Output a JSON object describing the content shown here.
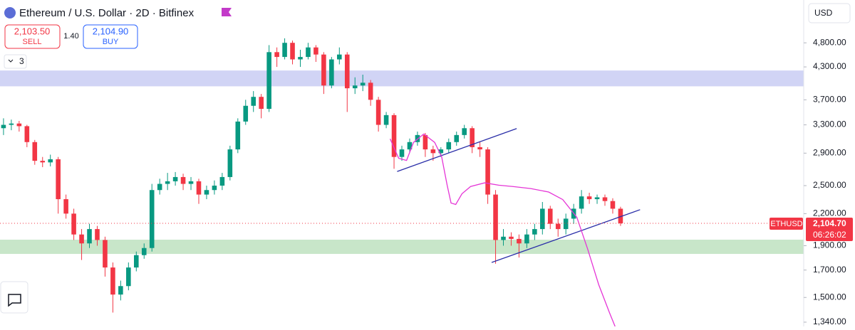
{
  "toolbar": {
    "symbol": "Ethereum / U.S. Dollar · 2D · Bitfinex",
    "sell_price": "2,103.50",
    "sell": "SELL",
    "spread": "1.40",
    "buy_price": "2,104.90",
    "buy": "BUY",
    "indicators": "3",
    "currency": "USD"
  },
  "chart_data": {
    "type": "candlestick",
    "log": true,
    "ylim": [
      1314,
      5837
    ],
    "xlim": [
      -0.45,
      102.45
    ],
    "yticks": [
      {
        "value": 4800,
        "label": "4,800.00"
      },
      {
        "value": 4300,
        "label": "4,300.00"
      },
      {
        "value": 3700,
        "label": "3,700.00"
      },
      {
        "value": 3300,
        "label": "3,300.00"
      },
      {
        "value": 2900,
        "label": "2,900.00"
      },
      {
        "value": 2500,
        "label": "2,500.00"
      },
      {
        "value": 2200,
        "label": "2,200.00"
      },
      {
        "value": 1900,
        "label": "1,900.00"
      },
      {
        "value": 1700,
        "label": "1,700.00"
      },
      {
        "value": 1500,
        "label": "1,500.00"
      },
      {
        "value": 1340,
        "label": "1,340.00"
      }
    ],
    "up_color": "#089981",
    "down_color": "#f23645",
    "open": [
      3250,
      3300,
      3320,
      3280,
      3050,
      2800,
      2780,
      2820,
      2350,
      2200,
      2000,
      1920,
      2050,
      1950,
      1720,
      1520,
      1580,
      1720,
      1820,
      1880,
      2450,
      2520,
      2550,
      2600,
      2520,
      2550,
      2400,
      2450,
      2500,
      2600,
      2950,
      3350,
      3600,
      3750,
      3550,
      4600,
      4500,
      4800,
      4450,
      4500,
      4700,
      4550,
      3950,
      4450,
      4550,
      3900,
      3950,
      4000,
      3700,
      3300,
      3450,
      2850,
      2950,
      3050,
      3150,
      2950,
      2900,
      2950,
      3050,
      3150,
      3250,
      2980,
      2950,
      2400,
      1950,
      1980,
      1960,
      1920,
      2000,
      2050,
      2250,
      2100,
      2050,
      2150,
      2250,
      2380,
      2350,
      2370,
      2330,
      2250
    ],
    "high": [
      3400,
      3380,
      3360,
      3300,
      3080,
      2850,
      2880,
      2850,
      2400,
      2250,
      2050,
      2100,
      2080,
      1980,
      1760,
      1620,
      1760,
      1850,
      1920,
      2520,
      2580,
      2650,
      2660,
      2640,
      2600,
      2580,
      2500,
      2560,
      2650,
      3000,
      3400,
      3700,
      3850,
      3800,
      4750,
      4700,
      4900,
      4850,
      4650,
      4800,
      4750,
      4600,
      4500,
      4700,
      4600,
      4100,
      4150,
      4050,
      3750,
      3500,
      3480,
      3000,
      3100,
      3200,
      3180,
      3000,
      2980,
      3100,
      3200,
      3300,
      3280,
      3050,
      2980,
      2450,
      2050,
      2020,
      2000,
      2050,
      2100,
      2320,
      2280,
      2150,
      2200,
      2300,
      2450,
      2420,
      2400,
      2400,
      2360,
      2270
    ],
    "low": [
      3150,
      3220,
      3200,
      2980,
      2750,
      2720,
      2730,
      2200,
      2150,
      1950,
      1780,
      1880,
      1900,
      1650,
      1400,
      1480,
      1550,
      1690,
      1790,
      1850,
      2400,
      2450,
      2500,
      2450,
      2450,
      2300,
      2350,
      2400,
      2450,
      2560,
      2900,
      3300,
      3500,
      3400,
      3500,
      4300,
      4450,
      4350,
      4300,
      4450,
      4400,
      3800,
      3900,
      4350,
      3500,
      3800,
      3850,
      3600,
      3200,
      3250,
      2700,
      2800,
      2900,
      3000,
      2850,
      2800,
      2850,
      2900,
      3000,
      3100,
      2900,
      2850,
      2300,
      1750,
      1900,
      1900,
      1800,
      1880,
      1950,
      2000,
      2050,
      1980,
      2000,
      2100,
      2200,
      2300,
      2300,
      2280,
      2200,
      2080
    ],
    "close": [
      3300,
      3320,
      3280,
      3050,
      2800,
      2780,
      2820,
      2350,
      2200,
      2000,
      1920,
      2050,
      1950,
      1720,
      1520,
      1580,
      1720,
      1820,
      1880,
      2450,
      2520,
      2550,
      2600,
      2520,
      2550,
      2400,
      2450,
      2500,
      2600,
      2950,
      3350,
      3600,
      3750,
      3550,
      4600,
      4500,
      4800,
      4450,
      4500,
      4700,
      4550,
      3950,
      4450,
      4550,
      3900,
      3950,
      4000,
      3700,
      3300,
      3450,
      2850,
      2950,
      3050,
      3150,
      2950,
      2900,
      2950,
      3050,
      3150,
      3250,
      2980,
      2950,
      2400,
      1950,
      1980,
      1960,
      1920,
      2000,
      2050,
      2250,
      2100,
      2050,
      2150,
      2250,
      2380,
      2350,
      2370,
      2330,
      2250,
      2104.7
    ],
    "zones": [
      {
        "low": 3935,
        "high": 4230,
        "color": "#d1d4f5"
      },
      {
        "low": 1830,
        "high": 1953,
        "color": "#c8e6c9"
      }
    ],
    "lines": [
      {
        "x": [
          50.4,
          65.7
        ],
        "y": [
          2667,
          3245
        ],
        "color": "#2a2ea8"
      },
      {
        "x": [
          62.5,
          81.5
        ],
        "y": [
          1760,
          2240
        ],
        "color": "#2a2ea8"
      },
      {
        "x": [
          49.5,
          50.6,
          51.6,
          52.5,
          53.8,
          55.2,
          56.1,
          56.8,
          57.3,
          57.9,
          58.7,
          59.8,
          61.6,
          63.4,
          65.2,
          67.5,
          69.8,
          71.6,
          73.4,
          74.8,
          76.2,
          77.6,
          78.3
        ],
        "y": [
          3095,
          2832,
          2805,
          3046,
          3165,
          3046,
          2851,
          2505,
          2309,
          2294,
          2409,
          2490,
          2532,
          2505,
          2490,
          2467,
          2428,
          2346,
          2164,
          1869,
          1591,
          1397,
          1314
        ],
        "color": "#e535d6"
      }
    ],
    "symbol_tag": "ETHUSD",
    "last_price": {
      "value": 2104.7,
      "label": "2,104.70"
    },
    "countdown": "06:26:02"
  }
}
